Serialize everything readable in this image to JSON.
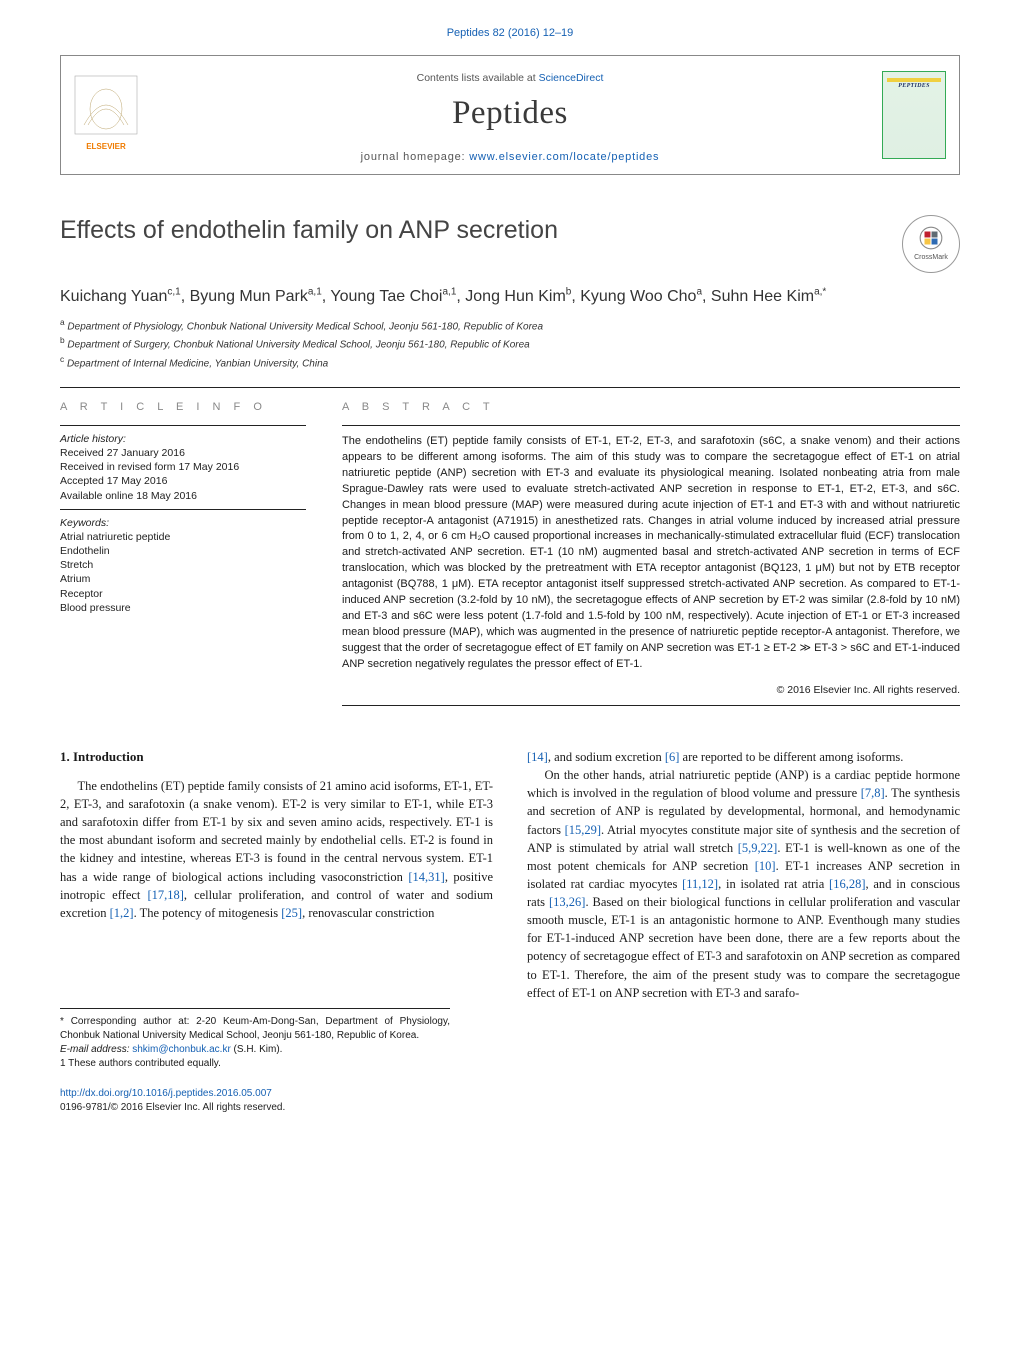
{
  "runningHead": {
    "journal": "Peptides",
    "citation": "82 (2016) 12–19"
  },
  "bar": {
    "avail_prefix": "Contents lists available at ",
    "avail_link": "ScienceDirect",
    "journalName": "Peptides",
    "homepage_prefix": "journal homepage: ",
    "homepage_url": "www.elsevier.com/locate/peptides",
    "cover_label": "PEPTIDES"
  },
  "colors": {
    "link": "#1560b3",
    "rule": "#222222",
    "muted": "#888888",
    "elsevier_orange": "#ef7b00",
    "cover_green": "#e3f2e6",
    "cover_band": "#f0d040"
  },
  "crossmark": "CrossMark",
  "title": "Effects of endothelin family on ANP secretion",
  "authors_html": "Kuichang Yuan<sup>c,1</sup>, Byung Mun Park<sup>a,1</sup>, Young Tae Choi<sup>a,1</sup>, Jong Hun Kim<sup>b</sup>, Kyung Woo Cho<sup>a</sup>, Suhn Hee Kim<sup>a,*</sup>",
  "affiliations": [
    {
      "sup": "a",
      "text": "Department of Physiology, Chonbuk National University Medical School, Jeonju 561-180, Republic of Korea"
    },
    {
      "sup": "b",
      "text": "Department of Surgery, Chonbuk National University Medical School, Jeonju 561-180, Republic of Korea"
    },
    {
      "sup": "c",
      "text": "Department of Internal Medicine, Yanbian University, China"
    }
  ],
  "articleInfo": {
    "heading": "a r t i c l e   i n f o",
    "historyLabel": "Article history:",
    "history": [
      "Received 27 January 2016",
      "Received in revised form 17 May 2016",
      "Accepted 17 May 2016",
      "Available online 18 May 2016"
    ],
    "keywordsLabel": "Keywords:",
    "keywords": [
      "Atrial natriuretic peptide",
      "Endothelin",
      "Stretch",
      "Atrium",
      "Receptor",
      "Blood pressure"
    ]
  },
  "abstract": {
    "heading": "a b s t r a c t",
    "text": "The endothelins (ET) peptide family consists of ET-1, ET-2, ET-3, and sarafotoxin (s6C, a snake venom) and their actions appears to be different among isoforms. The aim of this study was to compare the secretagogue effect of ET-1 on atrial natriuretic peptide (ANP) secretion with ET-3 and evaluate its physiological meaning. Isolated nonbeating atria from male Sprague-Dawley rats were used to evaluate stretch-activated ANP secretion in response to ET-1, ET-2, ET-3, and s6C. Changes in mean blood pressure (MAP) were measured during acute injection of ET-1 and ET-3 with and without natriuretic peptide receptor-A antagonist (A71915) in anesthetized rats. Changes in atrial volume induced by increased atrial pressure from 0 to 1, 2, 4, or 6 cm H₂O caused proportional increases in mechanically-stimulated extracellular fluid (ECF) translocation and stretch-activated ANP secretion. ET-1 (10 nM) augmented basal and stretch-activated ANP secretion in terms of ECF translocation, which was blocked by the pretreatment with ETA receptor antagonist (BQ123, 1 μM) but not by ETB receptor antagonist (BQ788, 1 μM). ETA receptor antagonist itself suppressed stretch-activated ANP secretion. As compared to ET-1-induced ANP secretion (3.2-fold by 10 nM), the secretagogue effects of ANP secretion by ET-2 was similar (2.8-fold by 10 nM) and ET-3 and s6C were less potent (1.7-fold and 1.5-fold by 100 nM, respectively). Acute injection of ET-1 or ET-3 increased mean blood pressure (MAP), which was augmented in the presence of natriuretic peptide receptor-A antagonist. Therefore, we suggest that the order of secretagogue effect of ET family on ANP secretion was ET-1 ≥ ET-2 ≫ ET-3 > s6C and ET-1-induced ANP secretion negatively regulates the pressor effect of ET-1.",
    "copyright": "© 2016 Elsevier Inc. All rights reserved."
  },
  "body": {
    "sectionNum": "1.",
    "sectionTitle": "Introduction",
    "leftParas": [
      "The endothelins (ET) peptide family consists of 21 amino acid isoforms, ET-1, ET-2, ET-3, and sarafotoxin (a snake venom). ET-2 is very similar to ET-1, while ET-3 and sarafotoxin differ from ET-1 by six and seven amino acids, respectively. ET-1 is the most abundant isoform and secreted mainly by endothelial cells. ET-2 is found in the kidney and intestine, whereas ET-3 is found in the central nervous system. ET-1 has a wide range of biological actions including vasoconstriction [14,31], positive inotropic effect [17,18], cellular proliferation, and control of water and sodium excretion [1,2]. The potency of mitogenesis [25], renovascular constriction"
    ],
    "rightParas": [
      "[14], and sodium excretion [6] are reported to be different among isoforms.",
      "On the other hands, atrial natriuretic peptide (ANP) is a cardiac peptide hormone which is involved in the regulation of blood volume and pressure [7,8]. The synthesis and secretion of ANP is regulated by developmental, hormonal, and hemodynamic factors [15,29]. Atrial myocytes constitute major site of synthesis and the secretion of ANP is stimulated by atrial wall stretch [5,9,22]. ET-1 is well-known as one of the most potent chemicals for ANP secretion [10]. ET-1 increases ANP secretion in isolated rat cardiac myocytes [11,12], in isolated rat atria [16,28], and in conscious rats [13,26]. Based on their biological functions in cellular proliferation and vascular smooth muscle, ET-1 is an antagonistic hormone to ANP. Eventhough many studies for ET-1-induced ANP secretion have been done, there are a few reports about the potency of secretagogue effect of ET-3 and sarafotoxin on ANP secretion as compared to ET-1. Therefore, the aim of the present study was to compare the secretagogue effect of ET-1 on ANP secretion with ET-3 and sarafo-"
    ],
    "refs_left": [
      "[14,31]",
      "[17,18]",
      "[1,2]",
      "[25]"
    ],
    "refs_right": [
      "[14]",
      "[6]",
      "[7,8]",
      "[15,29]",
      "[5,9,22]",
      "[10]",
      "[11,12]",
      "[16,28]",
      "[13,26]"
    ]
  },
  "footnotes": {
    "corr": "* Corresponding author at: 2-20 Keum-Am-Dong-San, Department of Physiology, Chonbuk National University Medical School, Jeonju 561-180, Republic of Korea.",
    "emailLabel": "E-mail address: ",
    "email": "shkim@chonbuk.ac.kr",
    "emailSuffix": " (S.H. Kim).",
    "equal": "1 These authors contributed equally."
  },
  "doi": {
    "url": "http://dx.doi.org/10.1016/j.peptides.2016.05.007",
    "issn_cp": "0196-9781/© 2016 Elsevier Inc. All rights reserved."
  }
}
